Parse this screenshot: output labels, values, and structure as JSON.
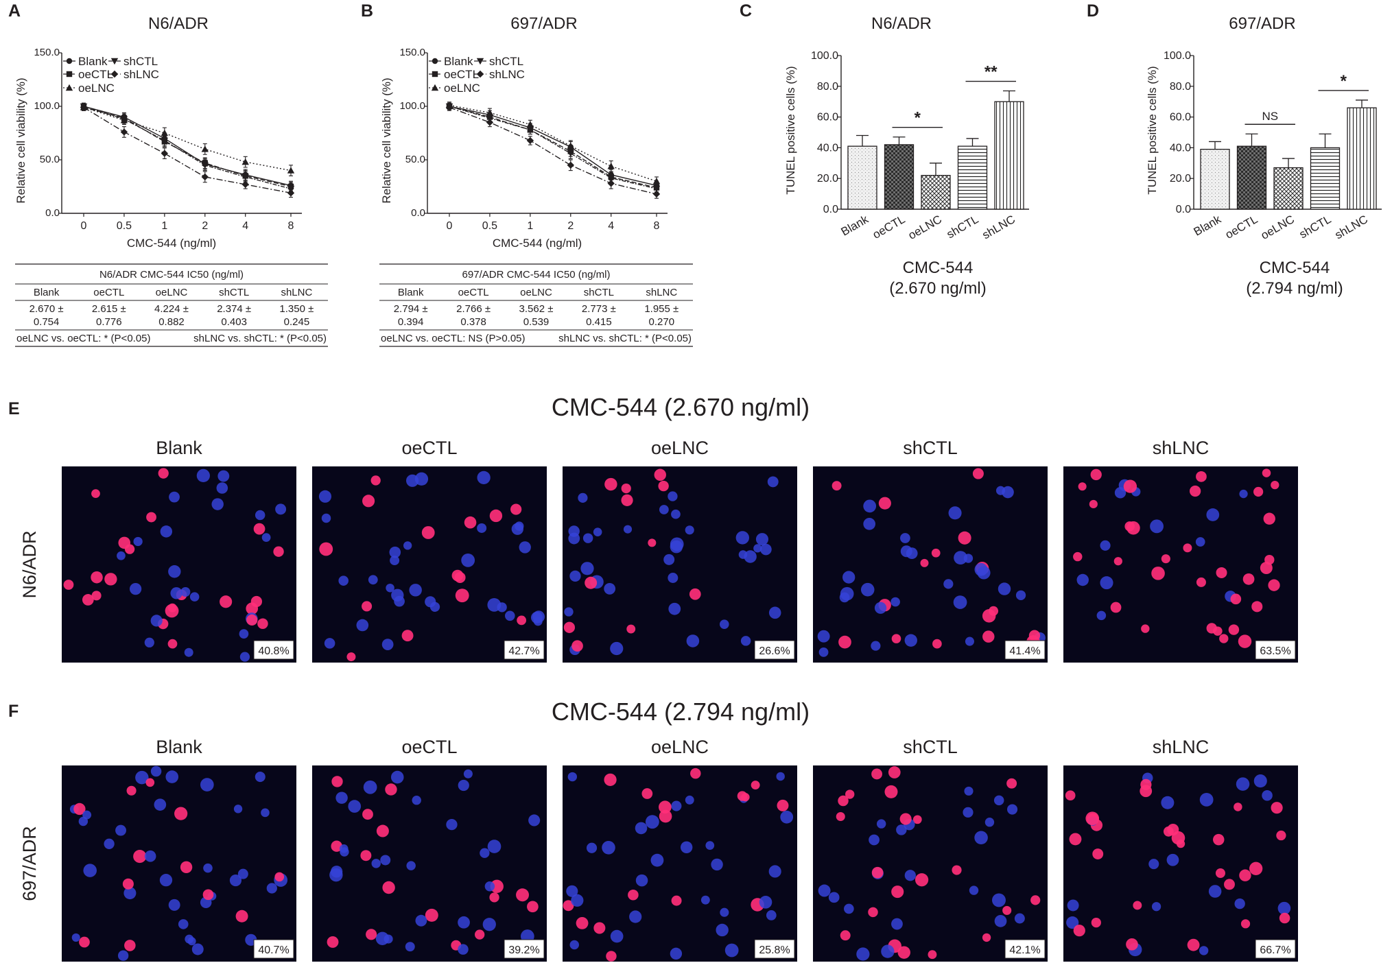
{
  "panel_letters": [
    "A",
    "B",
    "C",
    "D",
    "E",
    "F"
  ],
  "colors": {
    "axis": "#231f20",
    "micro_bg": "#07061a",
    "nuclei": "#3543d8",
    "tunel": "#ff2f78"
  },
  "chart_data": [
    {
      "type": "line",
      "title": "N6/ADR",
      "xlabel": "CMC-544 (ng/ml)",
      "ylabel": "Relative cell viability (%)",
      "categories": [
        "0",
        "0.5",
        "1",
        "2",
        "4",
        "8"
      ],
      "yticks": [
        "0.0",
        "50.0",
        "100.0",
        "150.0"
      ],
      "ylim": [
        0,
        150
      ],
      "legend_placement": "top-right",
      "series": [
        {
          "name": "Blank",
          "values": [
            100,
            90,
            70,
            46,
            36,
            26
          ],
          "err": [
            3,
            4,
            5,
            5,
            5,
            4
          ]
        },
        {
          "name": "oeCTL",
          "values": [
            99,
            89,
            67,
            47,
            35,
            25
          ],
          "err": [
            3,
            4,
            5,
            5,
            5,
            4
          ]
        },
        {
          "name": "oeLNC",
          "values": [
            99,
            87,
            75,
            60,
            48,
            40
          ],
          "err": [
            3,
            4,
            5,
            5,
            5,
            5
          ]
        },
        {
          "name": "shCTL",
          "values": [
            100,
            88,
            68,
            45,
            34,
            23
          ],
          "err": [
            3,
            4,
            5,
            5,
            5,
            4
          ]
        },
        {
          "name": "shLNC",
          "values": [
            99,
            76,
            56,
            34,
            27,
            19
          ],
          "err": [
            3,
            5,
            5,
            5,
            4,
            4
          ]
        }
      ]
    },
    {
      "type": "line",
      "title": "697/ADR",
      "xlabel": "CMC-544 (ng/ml)",
      "ylabel": "Relative cell viability (%)",
      "categories": [
        "0",
        "0.5",
        "1",
        "2",
        "4",
        "8"
      ],
      "yticks": [
        "0.0",
        "50.0",
        "100.0",
        "150.0"
      ],
      "ylim": [
        0,
        150
      ],
      "legend_placement": "top-right",
      "series": [
        {
          "name": "Blank",
          "values": [
            100,
            92,
            80,
            62,
            36,
            26
          ],
          "err": [
            3,
            4,
            4,
            5,
            5,
            4
          ]
        },
        {
          "name": "oeCTL",
          "values": [
            100,
            90,
            78,
            58,
            34,
            24
          ],
          "err": [
            3,
            4,
            4,
            5,
            5,
            4
          ]
        },
        {
          "name": "oeLNC",
          "values": [
            101,
            94,
            83,
            63,
            44,
            30
          ],
          "err": [
            3,
            4,
            4,
            5,
            5,
            4
          ]
        },
        {
          "name": "shCTL",
          "values": [
            100,
            89,
            78,
            56,
            33,
            23
          ],
          "err": [
            3,
            4,
            4,
            5,
            5,
            4
          ]
        },
        {
          "name": "shLNC",
          "values": [
            99,
            85,
            68,
            45,
            28,
            18
          ],
          "err": [
            3,
            4,
            4,
            5,
            5,
            4
          ]
        }
      ]
    },
    {
      "type": "bar",
      "title": "N6/ADR",
      "ylabel": "TUNEL positive cells (%)",
      "xlabel_lines": [
        "CMC-544",
        "(2.670 ng/ml)"
      ],
      "categories": [
        "Blank",
        "oeCTL",
        "oeLNC",
        "shCTL",
        "shLNC"
      ],
      "values": [
        41,
        42,
        22,
        41,
        70
      ],
      "err": [
        7,
        5,
        8,
        5,
        7
      ],
      "yticks": [
        "0.0",
        "20.0",
        "40.0",
        "60.0",
        "80.0",
        "100.0"
      ],
      "ylim": [
        0,
        100
      ],
      "significance": [
        {
          "pair": [
            1,
            2
          ],
          "label": "*"
        },
        {
          "pair": [
            3,
            4
          ],
          "label": "**"
        }
      ]
    },
    {
      "type": "bar",
      "title": "697/ADR",
      "ylabel": "TUNEL positive cells (%)",
      "xlabel_lines": [
        "CMC-544",
        "(2.794 ng/ml)"
      ],
      "categories": [
        "Blank",
        "oeCTL",
        "oeLNC",
        "shCTL",
        "shLNC"
      ],
      "values": [
        39,
        41,
        27,
        40,
        66
      ],
      "err": [
        5,
        8,
        6,
        9,
        5
      ],
      "yticks": [
        "0.0",
        "20.0",
        "40.0",
        "60.0",
        "80.0",
        "100.0"
      ],
      "ylim": [
        0,
        100
      ],
      "significance": [
        {
          "pair": [
            1,
            2
          ],
          "label": "NS"
        },
        {
          "pair": [
            3,
            4
          ],
          "label": "*"
        }
      ]
    },
    {
      "type": "table",
      "title": "N6/ADR CMC-544 IC50 (ng/ml)",
      "columns": [
        "Blank",
        "oeCTL",
        "oeLNC",
        "shCTL",
        "shLNC"
      ],
      "rows": [
        [
          "2.670 ±",
          "2.615 ±",
          "4.224 ±",
          "2.374 ±",
          "1.350 ±"
        ],
        [
          "0.754",
          "0.776",
          "0.882",
          "0.403",
          "0.245"
        ]
      ],
      "footnote_left": "oeLNC vs. oeCTL: * (P<0.05)",
      "footnote_right": "shLNC vs. shCTL: * (P<0.05)"
    },
    {
      "type": "table",
      "title": "697/ADR CMC-544 IC50 (ng/ml)",
      "columns": [
        "Blank",
        "oeCTL",
        "oeLNC",
        "shCTL",
        "shLNC"
      ],
      "rows": [
        [
          "2.794 ±",
          "2.766 ±",
          "3.562 ±",
          "2.773 ±",
          "1.955 ±"
        ],
        [
          "0.394",
          "0.378",
          "0.539",
          "0.415",
          "0.270"
        ]
      ],
      "footnote_left": "oeLNC vs. oeCTL: NS (P>0.05)",
      "footnote_right": "shLNC vs. shCTL: * (P<0.05)"
    }
  ],
  "micrographs": {
    "columns": [
      "Blank",
      "oeCTL",
      "oeLNC",
      "shCTL",
      "shLNC"
    ],
    "rows": [
      {
        "title": "CMC-544 (2.670 ng/ml)",
        "cell_line": "N6/ADR",
        "percents": [
          "40.8%",
          "42.7%",
          "26.6%",
          "41.4%",
          "63.5%"
        ],
        "tunel_fraction": [
          0.41,
          0.43,
          0.27,
          0.41,
          0.64
        ]
      },
      {
        "title": "CMC-544 (2.794 ng/ml)",
        "cell_line": "697/ADR",
        "percents": [
          "40.7%",
          "39.2%",
          "25.8%",
          "42.1%",
          "66.7%"
        ],
        "tunel_fraction": [
          0.41,
          0.39,
          0.26,
          0.42,
          0.67
        ]
      }
    ]
  }
}
